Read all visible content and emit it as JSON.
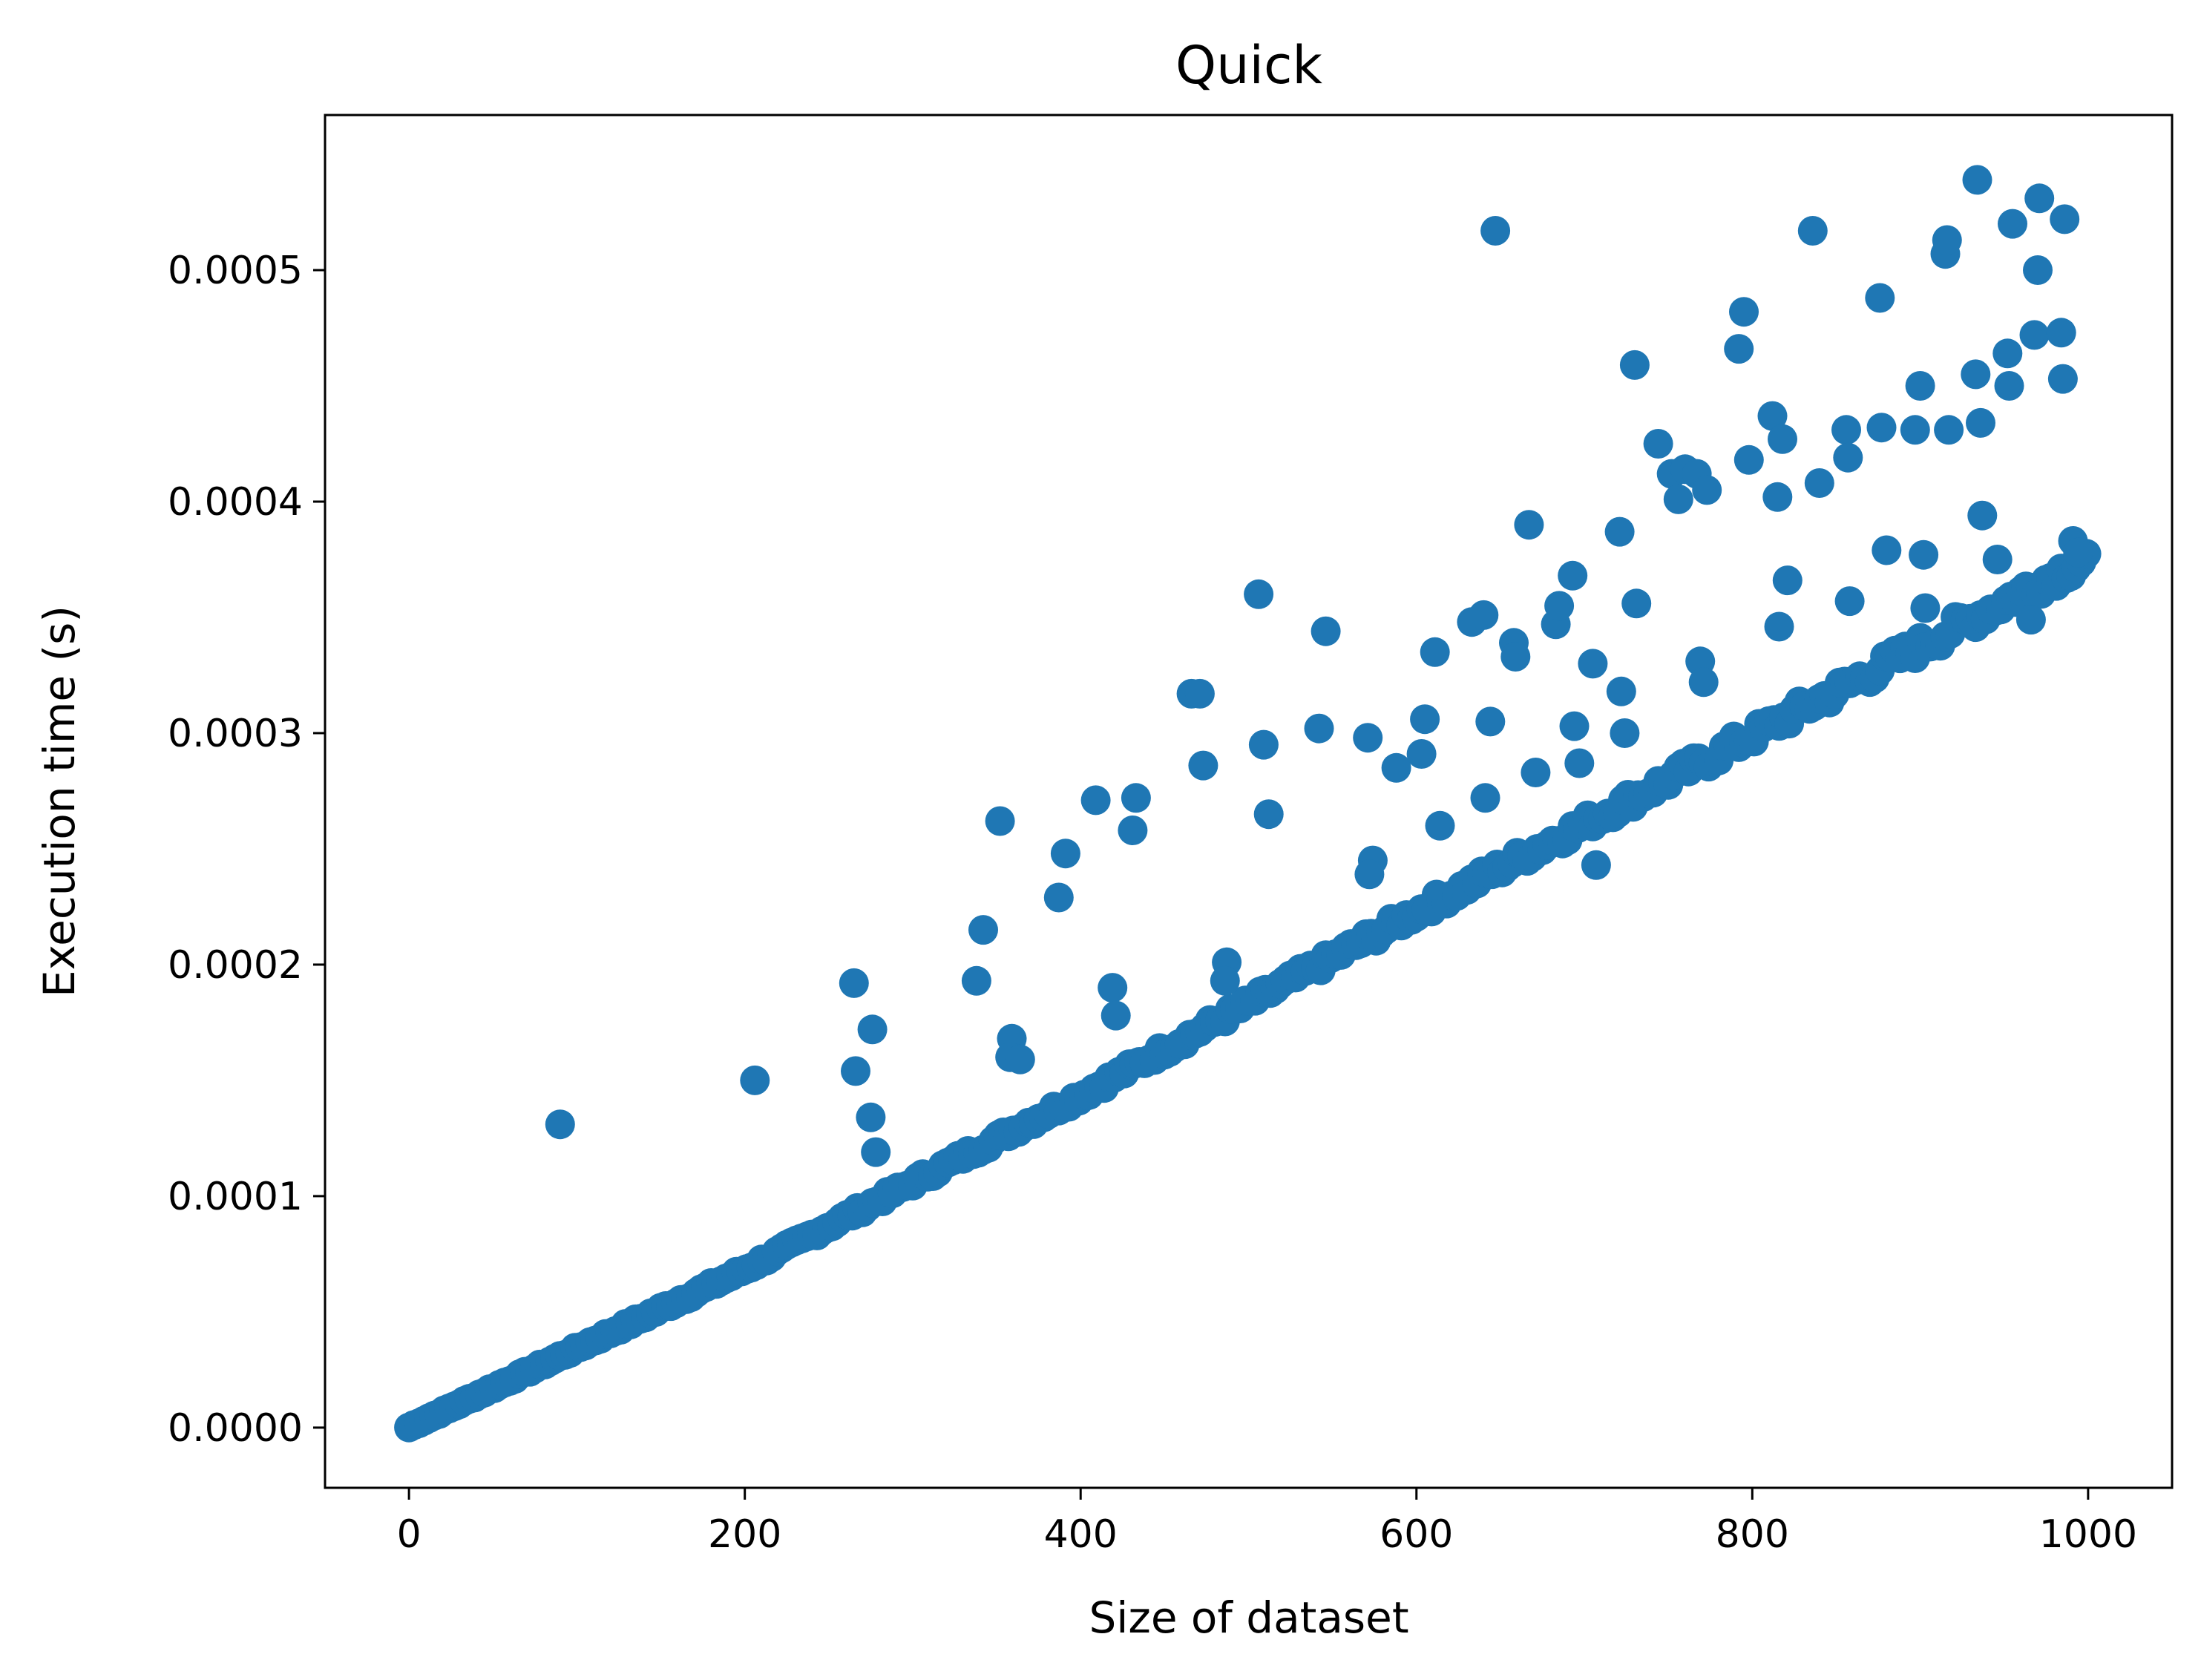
{
  "chart_data": {
    "type": "scatter",
    "title": "Quick",
    "xlabel": "Size of dataset",
    "ylabel": "Execution time (s)",
    "xlim": [
      -50,
      1050
    ],
    "ylim": [
      -2.6e-05,
      0.000567
    ],
    "x_ticks": [
      0,
      200,
      400,
      600,
      800,
      1000
    ],
    "x_tick_labels": [
      "0",
      "200",
      "400",
      "600",
      "800",
      "1000"
    ],
    "y_ticks": [
      0,
      0.0001,
      0.0002,
      0.0003,
      0.0004,
      0.0005
    ],
    "y_tick_labels": [
      "0.0000",
      "0.0001",
      "0.0002",
      "0.0003",
      "0.0004",
      "0.0005"
    ],
    "grid": false,
    "legend": "none",
    "marker_color": "#1f77b4",
    "series": [
      {
        "trend": {
          "x_start": 0,
          "x_end": 1000,
          "step": 3,
          "y_at_zero": 0.0,
          "y_at_200": 6.8e-05,
          "y_at_400": 0.000143,
          "y_at_600": 0.000222,
          "y_at_800": 0.000298,
          "y_at_1000": 0.000375
        },
        "points": [
          [
            90,
            0.000131
          ],
          [
            206,
            0.00015
          ],
          [
            265,
            0.000192
          ],
          [
            266,
            0.000154
          ],
          [
            276,
            0.000172
          ],
          [
            275,
            0.000134
          ],
          [
            278,
            0.000119
          ],
          [
            338,
            0.000193
          ],
          [
            342,
            0.000215
          ],
          [
            352,
            0.000262
          ],
          [
            359,
            0.000168
          ],
          [
            358,
            0.00016
          ],
          [
            364,
            0.000159
          ],
          [
            387,
            0.000229
          ],
          [
            391,
            0.000248
          ],
          [
            409,
            0.000271
          ],
          [
            419,
            0.00019
          ],
          [
            421,
            0.000178
          ],
          [
            431,
            0.000258
          ],
          [
            433,
            0.000272
          ],
          [
            466,
            0.000317
          ],
          [
            471,
            0.000317
          ],
          [
            473,
            0.000286
          ],
          [
            487,
            0.000201
          ],
          [
            486,
            0.000193
          ],
          [
            506,
            0.00036
          ],
          [
            509,
            0.000295
          ],
          [
            512,
            0.000265
          ],
          [
            542,
            0.000302
          ],
          [
            546,
            0.000344
          ],
          [
            571,
            0.000298
          ],
          [
            574,
            0.000245
          ],
          [
            572,
            0.000239
          ],
          [
            588,
            0.000285
          ],
          [
            603,
            0.000291
          ],
          [
            605,
            0.000306
          ],
          [
            611,
            0.000335
          ],
          [
            614,
            0.00026
          ],
          [
            633,
            0.000348
          ],
          [
            640,
            0.000351
          ],
          [
            641,
            0.000272
          ],
          [
            644,
            0.000305
          ],
          [
            647,
            0.000517
          ],
          [
            658,
            0.000339
          ],
          [
            659,
            0.000333
          ],
          [
            667,
            0.00039
          ],
          [
            671,
            0.000283
          ],
          [
            683,
            0.000347
          ],
          [
            685,
            0.000355
          ],
          [
            693,
            0.000368
          ],
          [
            694,
            0.000303
          ],
          [
            697,
            0.000287
          ],
          [
            705,
            0.00033
          ],
          [
            707,
            0.000243
          ],
          [
            721,
            0.000387
          ],
          [
            722,
            0.000318
          ],
          [
            724,
            0.0003
          ],
          [
            730,
            0.000459
          ],
          [
            731,
            0.000356
          ],
          [
            744,
            0.000425
          ],
          [
            752,
            0.000412
          ],
          [
            756,
            0.000401
          ],
          [
            760,
            0.000414
          ],
          [
            767,
            0.000412
          ],
          [
            773,
            0.000405
          ],
          [
            769,
            0.000331
          ],
          [
            771,
            0.000322
          ],
          [
            792,
            0.000466
          ],
          [
            795,
            0.000482
          ],
          [
            798,
            0.000418
          ],
          [
            812,
            0.000437
          ],
          [
            815,
            0.000402
          ],
          [
            816,
            0.000346
          ],
          [
            818,
            0.000427
          ],
          [
            821,
            0.000366
          ],
          [
            836,
            0.000517
          ],
          [
            840,
            0.000408
          ],
          [
            856,
            0.000431
          ],
          [
            857,
            0.000419
          ],
          [
            858,
            0.000357
          ],
          [
            876,
            0.000488
          ],
          [
            877,
            0.000432
          ],
          [
            880,
            0.000379
          ],
          [
            897,
            0.000431
          ],
          [
            900,
            0.00045
          ],
          [
            902,
            0.000377
          ],
          [
            903,
            0.000354
          ],
          [
            915,
            0.000507
          ],
          [
            916,
            0.000513
          ],
          [
            917,
            0.000431
          ],
          [
            933,
            0.000455
          ],
          [
            934,
            0.000539
          ],
          [
            936,
            0.000434
          ],
          [
            937,
            0.000394
          ],
          [
            946,
            0.000375
          ],
          [
            952,
            0.000464
          ],
          [
            953,
            0.00045
          ],
          [
            955,
            0.00052
          ],
          [
            966,
            0.000349
          ],
          [
            968,
            0.000472
          ],
          [
            970,
            0.0005
          ],
          [
            971,
            0.000531
          ],
          [
            984,
            0.000473
          ],
          [
            985,
            0.000453
          ],
          [
            986,
            0.000522
          ],
          [
            991,
            0.000383
          ],
          [
            994,
            0.000378
          ]
        ]
      }
    ]
  }
}
